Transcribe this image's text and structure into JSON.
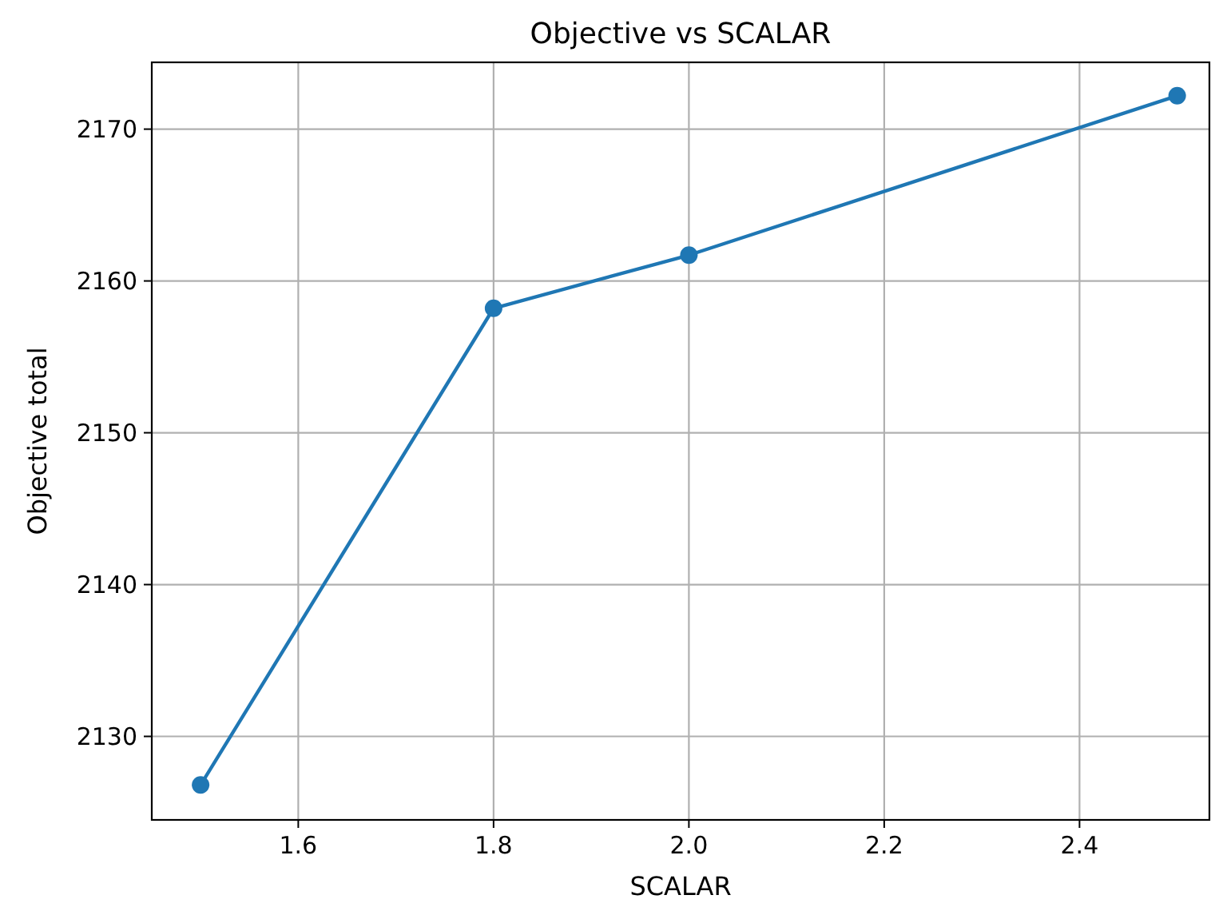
{
  "chart_data": {
    "type": "line",
    "title": "Objective vs SCALAR",
    "xlabel": "SCALAR",
    "ylabel": "Objective total",
    "x": [
      1.5,
      1.8,
      2.0,
      2.5
    ],
    "series": [
      {
        "color": "#1f77b4",
        "values": [
          2126.8,
          2158.2,
          2161.7,
          2172.2
        ]
      }
    ],
    "xlim": [
      1.45,
      2.533
    ],
    "xticks": [
      {
        "value": 1.6,
        "label": "1.6"
      },
      {
        "value": 1.8,
        "label": "1.8"
      },
      {
        "value": 2.0,
        "label": "2.0"
      },
      {
        "value": 2.2,
        "label": "2.2"
      },
      {
        "value": 2.4,
        "label": "2.4"
      }
    ],
    "ylim": [
      2124.5,
      2174.4
    ],
    "yticks": [
      2130,
      2140,
      2150,
      2160,
      2170
    ],
    "grid": true,
    "marker": "circle",
    "line_style": "solid"
  }
}
